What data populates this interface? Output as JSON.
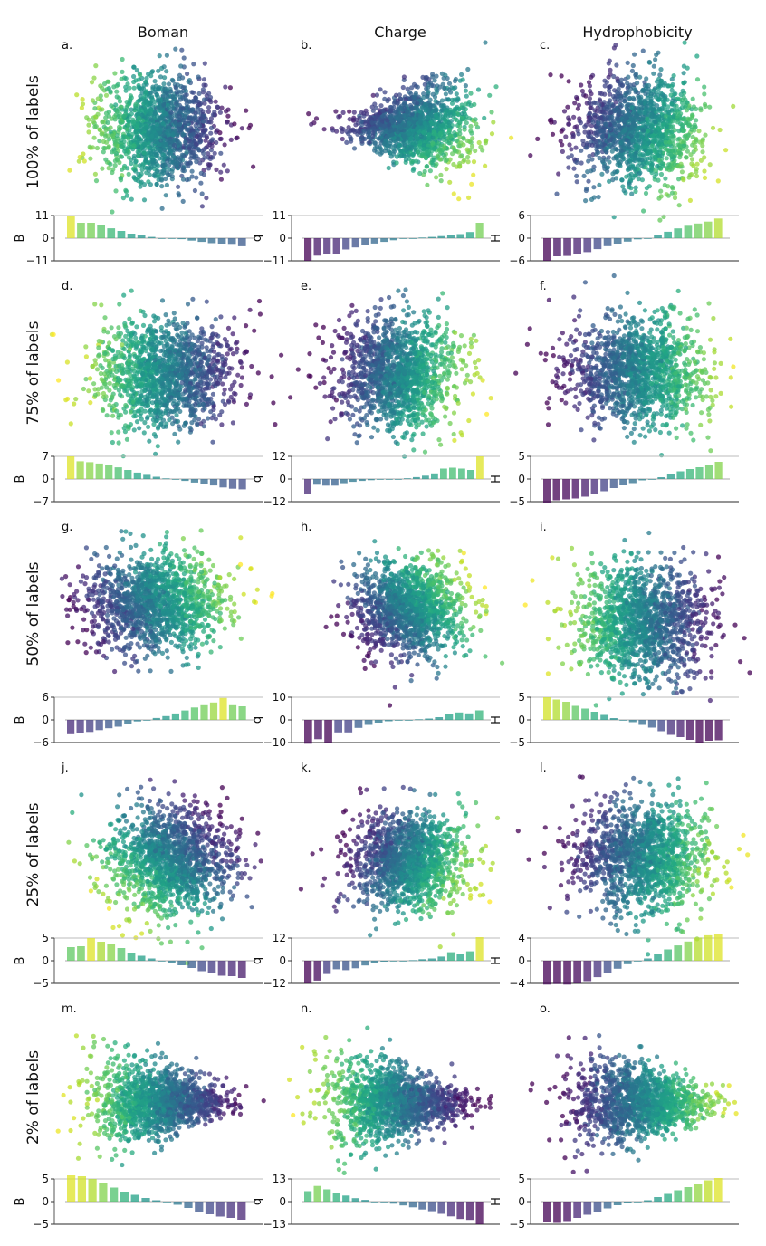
{
  "chart_data": {
    "type": "scatter+bar",
    "column_titles": [
      "Boman",
      "Charge",
      "Hydrophobicity"
    ],
    "row_titles": [
      "100% of labels",
      "75% of labels",
      "50% of labels",
      "25% of labels",
      "2% of labels"
    ],
    "colormap": "viridis",
    "panels": [
      {
        "letter": "a.",
        "row": 0,
        "col": 0,
        "bar_ylabel": "B",
        "ylim": [
          -11,
          11
        ],
        "yticks": [
          "11",
          "0",
          "−11"
        ],
        "shape": {
          "cx": 0.5,
          "cy": 0.5,
          "rx": 0.36,
          "ry": 0.38,
          "grad_angle": 0,
          "grad_dir": -1,
          "spread": "round"
        },
        "bars": [
          11,
          7.5,
          7.5,
          6.2,
          4.8,
          3.5,
          2.2,
          1.4,
          0.6,
          0,
          0,
          -0.5,
          -1.2,
          -1.8,
          -2.4,
          -2.9,
          -3.2,
          -3.9
        ]
      },
      {
        "letter": "b.",
        "row": 0,
        "col": 1,
        "bar_ylabel": "q",
        "ylim": [
          -11,
          11
        ],
        "yticks": [
          "11",
          "0",
          "−11"
        ],
        "shape": {
          "cx": 0.58,
          "cy": 0.48,
          "rx": 0.34,
          "ry": 0.36,
          "grad_angle": 40,
          "grad_dir": 1,
          "spread": "triangle-left"
        },
        "bars": [
          -11,
          -8.5,
          -7.5,
          -7.5,
          -5.5,
          -4.5,
          -3.5,
          -2.6,
          -1.8,
          -1.0,
          -0.3,
          0,
          0.3,
          0.6,
          1.0,
          1.4,
          2.0,
          3.0,
          7.5
        ]
      },
      {
        "letter": "c.",
        "row": 0,
        "col": 2,
        "bar_ylabel": "H",
        "ylim": [
          -6,
          6
        ],
        "yticks": [
          "6",
          "0",
          "−6"
        ],
        "shape": {
          "cx": 0.5,
          "cy": 0.5,
          "rx": 0.36,
          "ry": 0.38,
          "grad_angle": 20,
          "grad_dir": 1,
          "spread": "round"
        },
        "bars": [
          -6,
          -4.8,
          -4.7,
          -4.3,
          -3.7,
          -2.9,
          -2.1,
          -1.5,
          -0.9,
          -0.3,
          0,
          0.8,
          1.7,
          2.6,
          3.3,
          3.9,
          4.4,
          5.2
        ]
      },
      {
        "letter": "d.",
        "row": 1,
        "col": 0,
        "bar_ylabel": "B",
        "ylim": [
          -7,
          7
        ],
        "yticks": [
          "7",
          "0",
          "−7"
        ],
        "shape": {
          "cx": 0.53,
          "cy": 0.52,
          "rx": 0.4,
          "ry": 0.36,
          "grad_angle": 0,
          "grad_dir": -1,
          "spread": "round"
        },
        "bars": [
          7,
          5.5,
          5.2,
          4.8,
          4.3,
          3.6,
          2.8,
          2.0,
          1.3,
          0.7,
          0.2,
          0,
          -0.6,
          -1.1,
          -1.6,
          -2.0,
          -2.6,
          -3.0,
          -3.2
        ]
      },
      {
        "letter": "e.",
        "row": 1,
        "col": 1,
        "bar_ylabel": "q",
        "ylim": [
          -12,
          12
        ],
        "yticks": [
          "12",
          "0",
          "−12"
        ],
        "shape": {
          "cx": 0.5,
          "cy": 0.52,
          "rx": 0.34,
          "ry": 0.38,
          "grad_angle": 10,
          "grad_dir": 1,
          "spread": "round"
        },
        "bars": [
          -8,
          -3,
          -3.5,
          -3.5,
          -2.2,
          -1.5,
          -1.0,
          -0.6,
          -0.2,
          0,
          0,
          0.4,
          1.0,
          1.8,
          3.0,
          5.5,
          6.0,
          5.5,
          4.8,
          12
        ]
      },
      {
        "letter": "f.",
        "row": 1,
        "col": 2,
        "bar_ylabel": "H",
        "ylim": [
          -5,
          5
        ],
        "yticks": [
          "5",
          "0",
          "−5"
        ],
        "shape": {
          "cx": 0.5,
          "cy": 0.5,
          "rx": 0.4,
          "ry": 0.36,
          "grad_angle": 0,
          "grad_dir": 1,
          "spread": "round"
        },
        "bars": [
          -5.2,
          -4.7,
          -4.5,
          -4.3,
          -3.9,
          -3.4,
          -2.7,
          -2.0,
          -1.4,
          -0.9,
          -0.3,
          0,
          0.4,
          1.0,
          1.7,
          2.2,
          2.6,
          3.2,
          3.8
        ]
      },
      {
        "letter": "g.",
        "row": 2,
        "col": 0,
        "bar_ylabel": "B",
        "ylim": [
          -6,
          6
        ],
        "yticks": [
          "6",
          "0",
          "−6"
        ],
        "shape": {
          "cx": 0.48,
          "cy": 0.45,
          "rx": 0.4,
          "ry": 0.34,
          "grad_angle": -15,
          "grad_dir": 1,
          "spread": "round"
        },
        "bars": [
          -3.8,
          -3.5,
          -3.2,
          -2.7,
          -2.2,
          -1.8,
          -1.0,
          -0.4,
          0,
          0.5,
          1.0,
          1.7,
          2.5,
          3.3,
          3.9,
          4.6,
          5.8,
          3.9,
          3.6
        ]
      },
      {
        "letter": "h.",
        "row": 2,
        "col": 1,
        "bar_ylabel": "q",
        "ylim": [
          -10,
          10
        ],
        "yticks": [
          "10",
          "0",
          "−10"
        ],
        "shape": {
          "cx": 0.55,
          "cy": 0.48,
          "rx": 0.32,
          "ry": 0.32,
          "grad_angle": -30,
          "grad_dir": 1,
          "spread": "round"
        },
        "bars": [
          -10.5,
          -8.5,
          -10,
          -5.5,
          -5.5,
          -3.5,
          -2.2,
          -1.2,
          -0.6,
          0,
          0,
          0.3,
          0.6,
          1.2,
          2.7,
          3.3,
          2.9,
          4.2
        ]
      },
      {
        "letter": "i.",
        "row": 2,
        "col": 2,
        "bar_ylabel": "H",
        "ylim": [
          -5,
          5
        ],
        "yticks": [
          "5",
          "0",
          "−5"
        ],
        "shape": {
          "cx": 0.52,
          "cy": 0.55,
          "rx": 0.38,
          "ry": 0.4,
          "grad_angle": 0,
          "grad_dir": -1,
          "spread": "round"
        },
        "bars": [
          5,
          4.5,
          4,
          3.1,
          2.5,
          1.8,
          1.1,
          0.4,
          0,
          -0.5,
          -1.1,
          -1.7,
          -2.5,
          -3.3,
          -3.8,
          -4.4,
          -5.2,
          -4.6,
          -4.5
        ]
      },
      {
        "letter": "j.",
        "row": 3,
        "col": 0,
        "bar_ylabel": "B",
        "ylim": [
          -5,
          5
        ],
        "yticks": [
          "5",
          "0",
          "−5"
        ],
        "shape": {
          "cx": 0.55,
          "cy": 0.55,
          "rx": 0.36,
          "ry": 0.38,
          "grad_angle": -40,
          "grad_dir": -1,
          "spread": "round"
        },
        "bars": [
          3,
          3.2,
          5,
          4.2,
          3.7,
          2.8,
          1.8,
          1.1,
          0.5,
          0,
          -0.4,
          -1.0,
          -1.6,
          -2.3,
          -2.8,
          -3.3,
          -3.4,
          -3.8
        ]
      },
      {
        "letter": "k.",
        "row": 3,
        "col": 1,
        "bar_ylabel": "q",
        "ylim": [
          -12,
          12
        ],
        "yticks": [
          "12",
          "0",
          "−12"
        ],
        "shape": {
          "cx": 0.55,
          "cy": 0.55,
          "rx": 0.32,
          "ry": 0.34,
          "grad_angle": 20,
          "grad_dir": 1,
          "spread": "round"
        },
        "bars": [
          -12,
          -10.5,
          -7,
          -4.5,
          -5,
          -4,
          -2.5,
          -1.3,
          -0.5,
          0,
          0,
          0.3,
          0.8,
          1.2,
          2.2,
          4.5,
          3.5,
          5,
          12.5
        ]
      },
      {
        "letter": "l.",
        "row": 3,
        "col": 2,
        "bar_ylabel": "H",
        "ylim": [
          -4,
          4
        ],
        "yticks": [
          "4",
          "0",
          "−4"
        ],
        "shape": {
          "cx": 0.52,
          "cy": 0.52,
          "rx": 0.38,
          "ry": 0.38,
          "grad_angle": 10,
          "grad_dir": 1,
          "spread": "round"
        },
        "bars": [
          -4.2,
          -4.1,
          -4.2,
          -4,
          -3.6,
          -2.9,
          -2.1,
          -1.4,
          -0.6,
          0,
          0.4,
          1.2,
          2,
          2.7,
          3.4,
          4.1,
          4.5,
          4.7
        ]
      },
      {
        "letter": "m.",
        "row": 4,
        "col": 0,
        "bar_ylabel": "B",
        "ylim": [
          -5,
          5
        ],
        "yticks": [
          "5",
          "0",
          "−5"
        ],
        "shape": {
          "cx": 0.5,
          "cy": 0.55,
          "rx": 0.38,
          "ry": 0.36,
          "grad_angle": 0,
          "grad_dir": -1,
          "spread": "triangle-right"
        },
        "bars": [
          5.8,
          5.6,
          5,
          4.2,
          3.1,
          2.2,
          1.5,
          0.8,
          0.3,
          0,
          -0.7,
          -1.4,
          -2.2,
          -2.8,
          -3.3,
          -3.6,
          -4.0
        ]
      },
      {
        "letter": "n.",
        "row": 4,
        "col": 1,
        "bar_ylabel": "q",
        "ylim": [
          -13,
          13
        ],
        "yticks": [
          "13",
          "0",
          "−13"
        ],
        "shape": {
          "cx": 0.48,
          "cy": 0.55,
          "rx": 0.38,
          "ry": 0.38,
          "grad_angle": 0,
          "grad_dir": -1,
          "spread": "triangle-right"
        },
        "bars": [
          6,
          9,
          7,
          5,
          3.5,
          2,
          1,
          0,
          -0.4,
          -1.2,
          -2.2,
          -3.3,
          -4.5,
          -5.5,
          -7,
          -8.5,
          -10,
          -10.5,
          -13
        ]
      },
      {
        "letter": "o.",
        "row": 4,
        "col": 2,
        "bar_ylabel": "H",
        "ylim": [
          -5,
          5
        ],
        "yticks": [
          "5",
          "0",
          "−5"
        ],
        "shape": {
          "cx": 0.52,
          "cy": 0.55,
          "rx": 0.38,
          "ry": 0.36,
          "grad_angle": 0,
          "grad_dir": 1,
          "spread": "triangle-right"
        },
        "bars": [
          -4.6,
          -4.7,
          -4.3,
          -3.6,
          -2.9,
          -2.2,
          -1.5,
          -0.8,
          -0.3,
          0,
          0.3,
          1,
          1.7,
          2.5,
          3.2,
          4,
          4.7,
          5.2
        ]
      }
    ]
  }
}
